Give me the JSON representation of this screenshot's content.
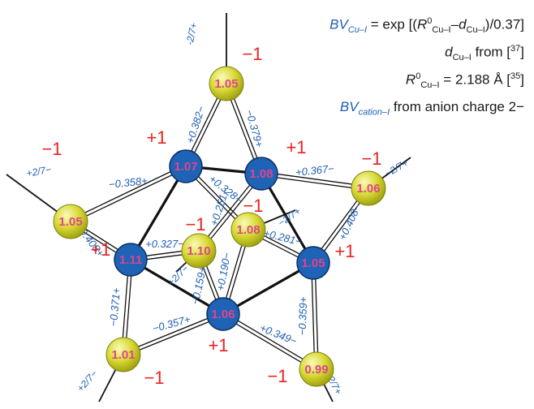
{
  "legend": {
    "line1": {
      "bv": "BV",
      "sub": "Cu–I",
      "eq": " = exp [(",
      "r": "R",
      "r_sup": "0",
      "r_sub": "Cu–I",
      "dash": "–",
      "d": "d",
      "d_sub": "Cu–I",
      "tail": ")/0.37]"
    },
    "line2": {
      "d": "d",
      "d_sub": "Cu–I",
      "from": " from [",
      "ref": "37",
      "close": "]"
    },
    "line3": {
      "r": "R",
      "r_sup": "0",
      "r_sub": "Cu–I",
      "eq": " = 2.188 Å [",
      "ref": "35",
      "close": "]"
    },
    "line4": {
      "bv": "BV",
      "sub": "cation–I",
      "text": " from anion charge 2−"
    }
  },
  "colors": {
    "cation_fill": "#1e63b5",
    "anion_fill": "#d6d832",
    "bv_text": "#e0448f",
    "charge_text": "#e8231f",
    "bond_text": "#1f5fb4",
    "bond_line": "#111111"
  },
  "cations": [
    {
      "id": "Cu1",
      "bv": "1.07",
      "charge": "+1"
    },
    {
      "id": "Cu2",
      "bv": "1.08",
      "charge": "+1"
    },
    {
      "id": "Cu3",
      "bv": "1.11",
      "charge": "+1"
    },
    {
      "id": "Cu4",
      "bv": "1.05",
      "charge": "+1"
    },
    {
      "id": "Cu5",
      "bv": "1.06",
      "charge": "+1"
    }
  ],
  "anions": [
    {
      "id": "I1",
      "bv": "1.05",
      "charge": "−1",
      "tail": "-2/7+"
    },
    {
      "id": "I2",
      "bv": "1.05",
      "charge": "−1",
      "tail": "+2/7−"
    },
    {
      "id": "I3",
      "bv": "1.06",
      "charge": "−1",
      "tail": "−2/7+"
    },
    {
      "id": "I4",
      "bv": "1.01",
      "charge": "−1",
      "tail": "+2/7−"
    },
    {
      "id": "I5",
      "bv": "0.99",
      "charge": "−1",
      "tail": "−2/7+"
    },
    {
      "id": "I6",
      "bv": "1.10",
      "charge": "−1",
      "tail": "+2/7−"
    },
    {
      "id": "I7",
      "bv": "1.08",
      "charge": "−1",
      "tail": "−2/7+"
    }
  ],
  "bonds": [
    {
      "a": "I1",
      "b": "Cu1",
      "label": "+0.382−"
    },
    {
      "a": "I1",
      "b": "Cu2",
      "label": "−0.379+"
    },
    {
      "a": "I2",
      "b": "Cu1",
      "label": "−0.358+"
    },
    {
      "a": "I2",
      "b": "Cu3",
      "label": "−0.408+"
    },
    {
      "a": "I3",
      "b": "Cu2",
      "label": "+0.367−"
    },
    {
      "a": "I3",
      "b": "Cu4",
      "label": "+0.408−"
    },
    {
      "a": "I4",
      "b": "Cu3",
      "label": "−0.371+"
    },
    {
      "a": "I4",
      "b": "Cu5",
      "label": "−0.357+"
    },
    {
      "a": "I5",
      "b": "Cu5",
      "label": "+0.349−"
    },
    {
      "a": "I5",
      "b": "Cu4",
      "label": "−0.359+"
    },
    {
      "a": "I7",
      "b": "Cu1",
      "label": "+0.328−"
    },
    {
      "a": "I6",
      "b": "Cu3",
      "label": "+0.327−"
    },
    {
      "a": "I6",
      "b": "Cu5",
      "label": "−0.159+"
    },
    {
      "a": "I7",
      "b": "Cu5",
      "label": "+0.190−"
    },
    {
      "a": "I7",
      "b": "Cu4",
      "label": "+0.281−"
    },
    {
      "a": "I6",
      "b": "Cu2",
      "label": "+0.251−"
    }
  ],
  "cu_cu_links": [
    [
      "Cu1",
      "Cu2"
    ],
    [
      "Cu1",
      "Cu3"
    ],
    [
      "Cu2",
      "Cu4"
    ],
    [
      "Cu3",
      "Cu5"
    ],
    [
      "Cu4",
      "Cu5"
    ]
  ]
}
